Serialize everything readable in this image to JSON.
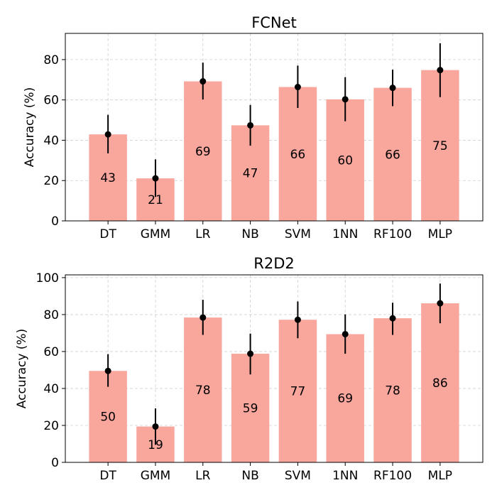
{
  "chart_data": [
    {
      "type": "bar",
      "title": "FCNet",
      "xlabel": "",
      "ylabel": "Accuracy (%)",
      "categories": [
        "DT",
        "GMM",
        "LR",
        "NB",
        "SVM",
        "1NN",
        "RF100",
        "MLP"
      ],
      "values": [
        42.9,
        21.1,
        69.2,
        47.4,
        66.4,
        60.3,
        66.0,
        74.8
      ],
      "error_low": [
        33.5,
        11.9,
        60.2,
        37.3,
        56.0,
        49.4,
        56.9,
        61.4
      ],
      "error_high": [
        52.6,
        30.5,
        78.5,
        57.5,
        77.0,
        71.3,
        75.0,
        88.1
      ],
      "data_labels": [
        "43",
        "21",
        "69",
        "47",
        "66",
        "60",
        "66",
        "75"
      ],
      "ylim": [
        0,
        93
      ],
      "yticks": [
        0,
        20,
        40,
        60,
        80
      ],
      "grid": true,
      "bar_color": "#f9a69d",
      "marker_color": "#000000"
    },
    {
      "type": "bar",
      "title": "R2D2",
      "xlabel": "",
      "ylabel": "Accuracy (%)",
      "categories": [
        "DT",
        "GMM",
        "LR",
        "NB",
        "SVM",
        "1NN",
        "RF100",
        "MLP"
      ],
      "values": [
        49.5,
        19.4,
        78.4,
        58.8,
        77.2,
        69.4,
        78.0,
        86.1
      ],
      "error_low": [
        40.9,
        9.5,
        69.0,
        47.6,
        67.2,
        58.8,
        69.0,
        75.3
      ],
      "error_high": [
        58.6,
        29.2,
        88.0,
        69.7,
        87.1,
        80.1,
        86.4,
        96.8
      ],
      "data_labels": [
        "50",
        "19",
        "78",
        "59",
        "77",
        "69",
        "78",
        "86"
      ],
      "ylim": [
        0,
        101.5
      ],
      "yticks": [
        0,
        20,
        40,
        60,
        80,
        100
      ],
      "grid": true,
      "bar_color": "#f9a69d",
      "marker_color": "#000000"
    }
  ]
}
